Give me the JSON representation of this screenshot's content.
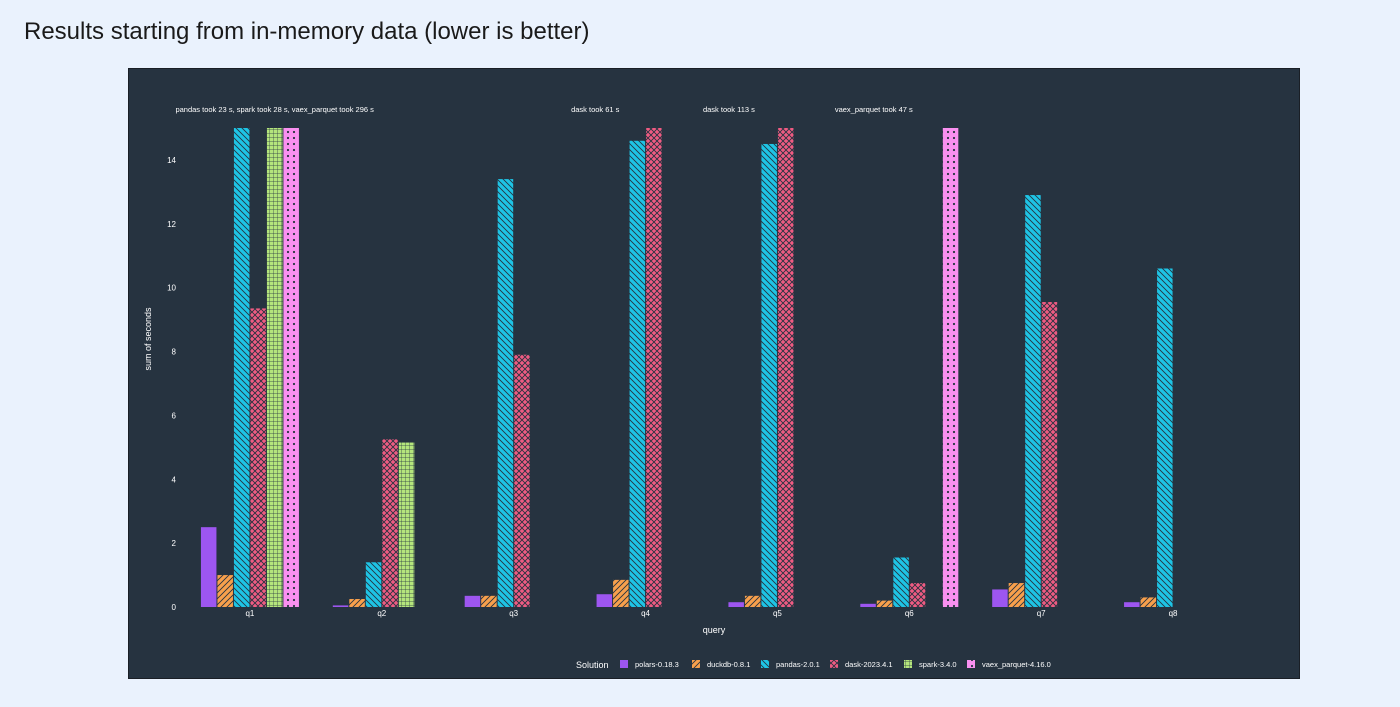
{
  "page": {
    "title": "Results starting from in-memory data (lower is better)"
  },
  "colors": {
    "background": "#263340",
    "polars": "#9d56f0",
    "duckdb": "#f8a04c",
    "pandas": "#1ec4e5",
    "dask": "#ef5b82",
    "spark": "#b4e57c",
    "vaex": "#f990f0"
  },
  "chart_data": {
    "type": "bar",
    "title": "",
    "xlabel": "query",
    "ylabel": "sum of seconds",
    "ylim": [
      0,
      15
    ],
    "yticks": [
      0,
      2,
      4,
      6,
      8,
      10,
      12,
      14
    ],
    "grid": false,
    "categories": [
      "q1",
      "q2",
      "q3",
      "q4",
      "q5",
      "q6",
      "q7",
      "q8"
    ],
    "legend": {
      "title": "Solution",
      "placement": "bottom"
    },
    "series": [
      {
        "name": "polars-0.18.3",
        "color": "#9d56f0",
        "pattern": "none",
        "values": [
          2.5,
          0.05,
          0.35,
          0.4,
          0.15,
          0.1,
          0.55,
          0.15
        ]
      },
      {
        "name": "duckdb-0.8.1",
        "color": "#f8a04c",
        "pattern": "hatch-fwd",
        "values": [
          1.0,
          0.25,
          0.35,
          0.85,
          0.35,
          0.2,
          0.75,
          0.3
        ]
      },
      {
        "name": "pandas-2.0.1",
        "color": "#1ec4e5",
        "pattern": "hatch-back",
        "values": [
          15,
          1.4,
          13.4,
          14.6,
          14.5,
          1.55,
          12.9,
          10.6
        ]
      },
      {
        "name": "dask-2023.4.1",
        "color": "#ef5b82",
        "pattern": "crosshatch",
        "values": [
          9.35,
          5.25,
          7.9,
          15,
          15,
          0.75,
          9.55,
          null
        ]
      },
      {
        "name": "spark-3.4.0",
        "color": "#b4e57c",
        "pattern": "grid",
        "values": [
          15,
          5.15,
          null,
          null,
          null,
          null,
          null,
          null
        ]
      },
      {
        "name": "vaex_parquet-4.16.0",
        "color": "#f990f0",
        "pattern": "dots",
        "values": [
          15,
          null,
          null,
          null,
          null,
          15,
          null,
          null
        ]
      }
    ],
    "annotations": [
      {
        "category": "q1",
        "text": "pandas took 23 s, spark took 28 s, vaex_parquet took 296 s"
      },
      {
        "category": "q4",
        "text": "dask took 61 s"
      },
      {
        "category": "q5",
        "text": "dask took 113 s"
      },
      {
        "category": "q6",
        "text": "vaex_parquet took 47 s"
      }
    ]
  }
}
